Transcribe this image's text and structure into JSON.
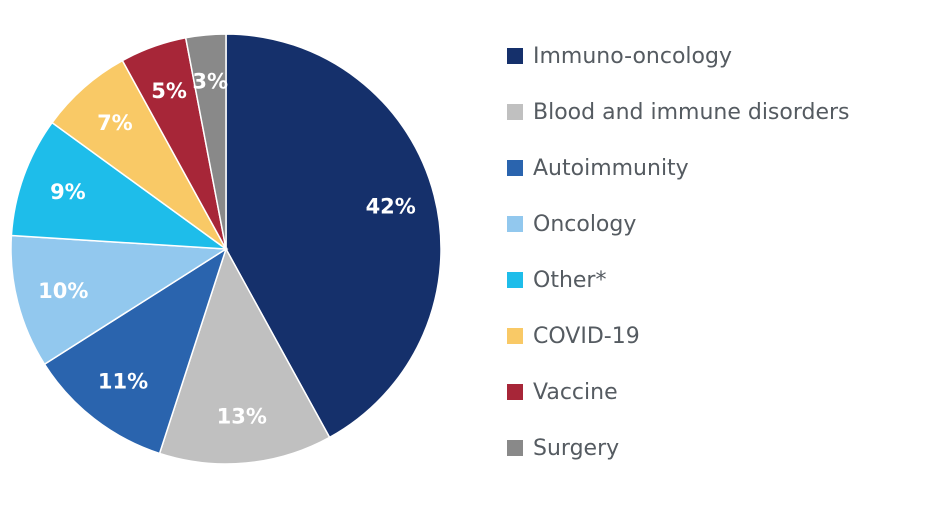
{
  "chart_data": {
    "type": "pie",
    "title": "",
    "slices": [
      {
        "name": "Immuno-oncology",
        "value": 42,
        "label": "42%",
        "color": "#15306b"
      },
      {
        "name": "Blood and immune disorders",
        "value": 13,
        "label": "13%",
        "color": "#c0c0c0"
      },
      {
        "name": "Autoimmunity",
        "value": 11,
        "label": "11%",
        "color": "#2a64ae"
      },
      {
        "name": "Oncology",
        "value": 10,
        "label": "10%",
        "color": "#92c8ee"
      },
      {
        "name": "Other*",
        "value": 9,
        "label": "9%",
        "color": "#1ebdea"
      },
      {
        "name": "COVID-19",
        "value": 7,
        "label": "7%",
        "color": "#f9c966"
      },
      {
        "name": "Vaccine",
        "value": 5,
        "label": "5%",
        "color": "#a72638"
      },
      {
        "name": "Surgery",
        "value": 3,
        "label": "3%",
        "color": "#898989"
      }
    ],
    "start_angle": "12 o'clock",
    "direction": "clockwise",
    "legend_position": "right"
  }
}
